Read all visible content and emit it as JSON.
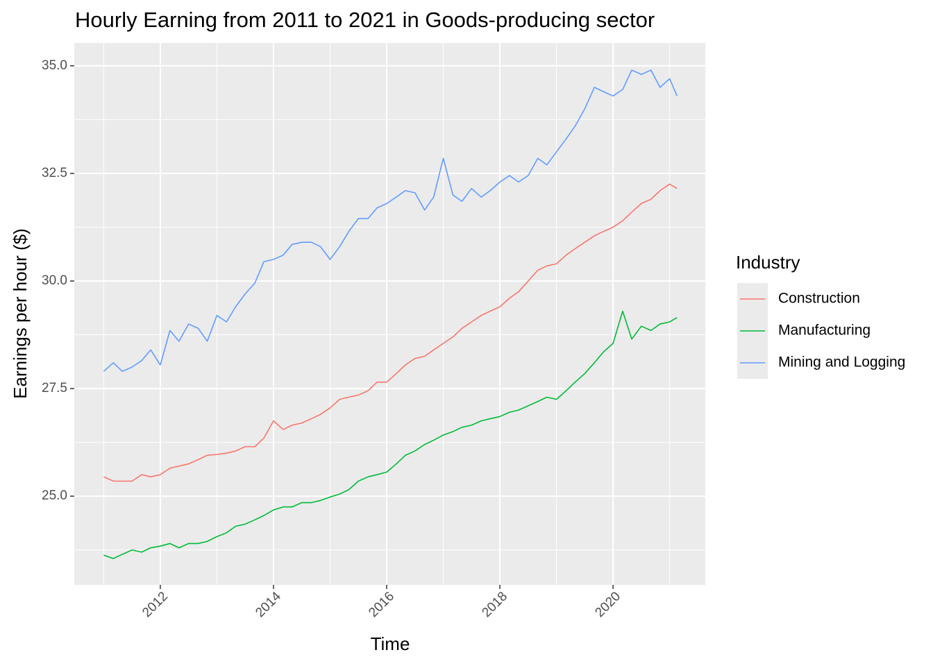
{
  "chart_data": {
    "type": "line",
    "title": "Hourly Earning from 2011 to 2021 in Goods-producing sector",
    "x_label": "Time",
    "y_label": "Earnings per hour ($)",
    "legend_title": "Industry",
    "legend_position": "right",
    "grid": true,
    "x": [
      2011,
      2011.17,
      2011.33,
      2011.5,
      2011.67,
      2011.83,
      2012,
      2012.17,
      2012.33,
      2012.5,
      2012.67,
      2012.83,
      2013,
      2013.17,
      2013.33,
      2013.5,
      2013.67,
      2013.83,
      2014,
      2014.17,
      2014.33,
      2014.5,
      2014.67,
      2014.83,
      2015,
      2015.17,
      2015.33,
      2015.5,
      2015.67,
      2015.83,
      2016,
      2016.17,
      2016.33,
      2016.5,
      2016.67,
      2016.83,
      2017,
      2017.17,
      2017.33,
      2017.5,
      2017.67,
      2017.83,
      2018,
      2018.17,
      2018.33,
      2018.5,
      2018.67,
      2018.83,
      2019,
      2019.17,
      2019.33,
      2019.5,
      2019.67,
      2019.83,
      2020,
      2020.17,
      2020.33,
      2020.5,
      2020.67,
      2020.83,
      2021,
      2021.13
    ],
    "xlim": [
      2010.48,
      2021.63
    ],
    "xticks": [
      2012,
      2014,
      2016,
      2018,
      2020
    ],
    "ylim": [
      22.94,
      35.53
    ],
    "yticks": [
      {
        "value": 25,
        "label": "25.0"
      },
      {
        "value": 27.5,
        "label": "27.5"
      },
      {
        "value": 30,
        "label": "30.0"
      },
      {
        "value": 32.5,
        "label": "32.5"
      },
      {
        "value": 35,
        "label": "35.0"
      }
    ],
    "series": [
      {
        "name": "Construction",
        "color": "#F8766D",
        "values": [
          25.45,
          25.35,
          25.35,
          25.35,
          25.5,
          25.45,
          25.5,
          25.65,
          25.7,
          25.75,
          25.85,
          25.95,
          25.97,
          26.0,
          26.05,
          26.15,
          26.15,
          26.35,
          26.75,
          26.55,
          26.65,
          26.7,
          26.8,
          26.9,
          27.05,
          27.25,
          27.3,
          27.35,
          27.45,
          27.65,
          27.65,
          27.85,
          28.05,
          28.2,
          28.25,
          28.4,
          28.55,
          28.7,
          28.9,
          29.05,
          29.2,
          29.3,
          29.4,
          29.6,
          29.75,
          30.0,
          30.25,
          30.35,
          30.4,
          30.6,
          30.75,
          30.9,
          31.05,
          31.15,
          31.25,
          31.4,
          31.6,
          31.8,
          31.9,
          32.1,
          32.25,
          32.15
        ]
      },
      {
        "name": "Manufacturing",
        "color": "#00BA38",
        "values": [
          23.63,
          23.55,
          23.65,
          23.75,
          23.7,
          23.8,
          23.84,
          23.9,
          23.8,
          23.9,
          23.9,
          23.95,
          24.06,
          24.15,
          24.3,
          24.35,
          24.45,
          24.55,
          24.68,
          24.75,
          24.75,
          24.85,
          24.85,
          24.9,
          24.98,
          25.05,
          25.15,
          25.35,
          25.45,
          25.5,
          25.56,
          25.75,
          25.95,
          26.05,
          26.2,
          26.3,
          26.42,
          26.5,
          26.6,
          26.65,
          26.75,
          26.8,
          26.85,
          26.95,
          27.0,
          27.1,
          27.2,
          27.3,
          27.25,
          27.45,
          27.65,
          27.85,
          28.1,
          28.35,
          28.55,
          29.3,
          28.65,
          28.95,
          28.85,
          29.0,
          29.05,
          29.15
        ]
      },
      {
        "name": "Mining and Logging",
        "color": "#619CFF",
        "values": [
          27.9,
          28.1,
          27.9,
          28.0,
          28.15,
          28.4,
          28.05,
          28.85,
          28.6,
          29.0,
          28.9,
          28.6,
          29.2,
          29.05,
          29.4,
          29.7,
          29.95,
          30.45,
          30.5,
          30.6,
          30.85,
          30.9,
          30.9,
          30.8,
          30.5,
          30.8,
          31.15,
          31.45,
          31.45,
          31.7,
          31.8,
          31.95,
          32.1,
          32.05,
          31.65,
          31.95,
          32.85,
          32.0,
          31.85,
          32.15,
          31.95,
          32.1,
          32.3,
          32.45,
          32.3,
          32.45,
          32.85,
          32.7,
          33.0,
          33.3,
          33.6,
          34.0,
          34.5,
          34.4,
          34.3,
          34.45,
          34.9,
          34.8,
          34.9,
          34.5,
          34.7,
          34.3
        ]
      }
    ]
  }
}
